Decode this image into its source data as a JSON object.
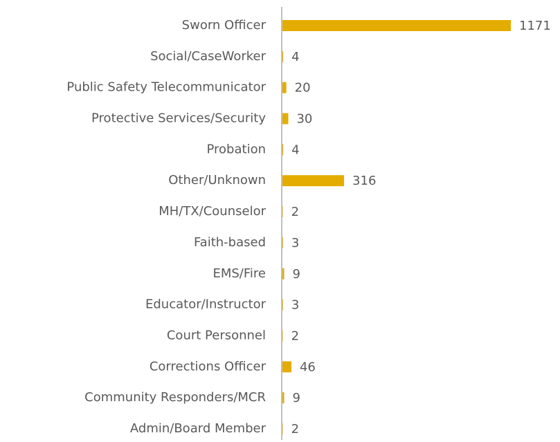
{
  "chart_data": {
    "type": "bar",
    "orientation": "horizontal",
    "categories": [
      "Sworn Officer",
      "Social/CaseWorker",
      "Public Safety Telecommunicator",
      "Protective Services/Security",
      "Probation",
      "Other/Unknown",
      "MH/TX/Counselor",
      "Faith-based",
      "EMS/Fire",
      "Educator/Instructor",
      "Court Personnel",
      "Corrections Officer",
      "Community Responders/MCR",
      "Admin/Board Member"
    ],
    "values": [
      1171,
      4,
      20,
      30,
      4,
      316,
      2,
      3,
      9,
      3,
      2,
      46,
      9,
      2
    ],
    "color": "#e5ac00"
  }
}
